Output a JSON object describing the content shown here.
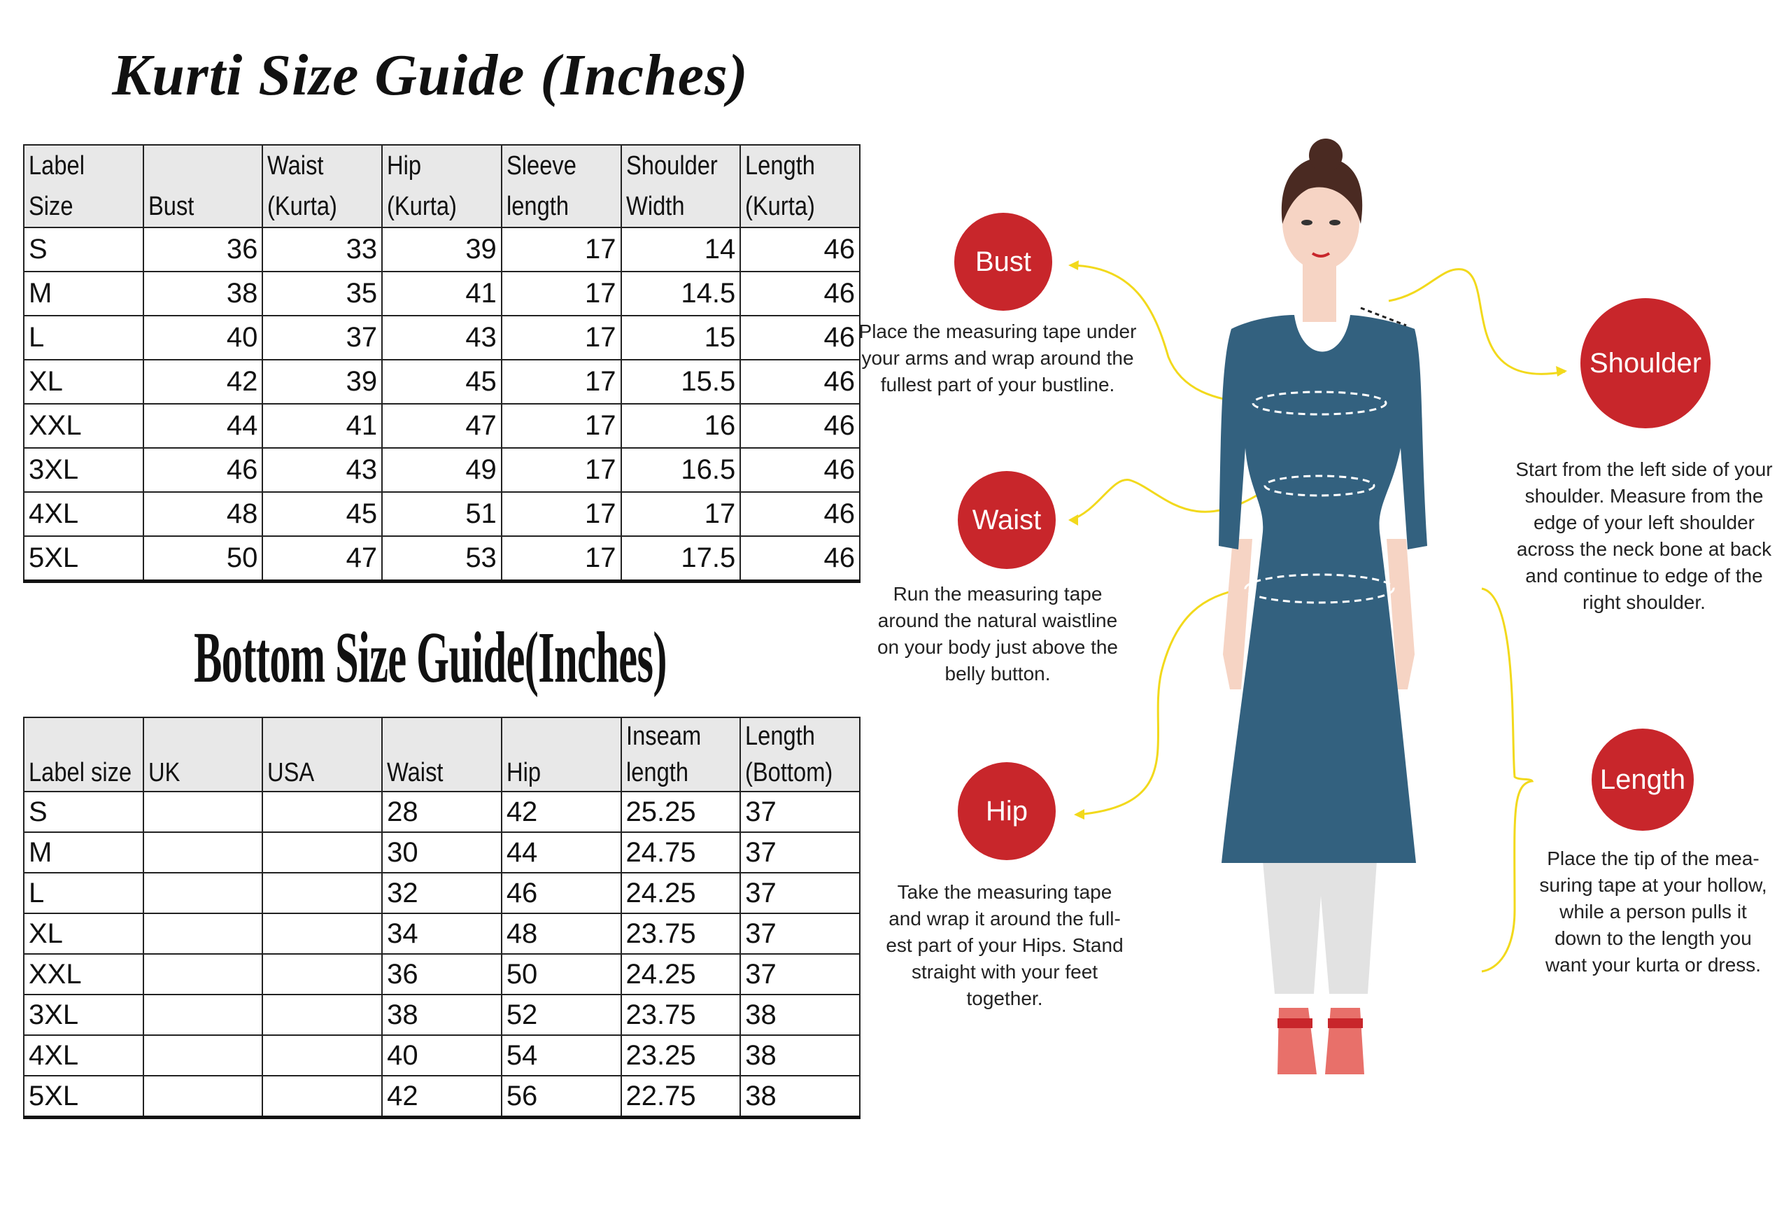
{
  "kurti": {
    "title": "Kurti Size Guide (Inches)",
    "headers": [
      [
        "Label",
        "Size"
      ],
      [
        "",
        "Bust"
      ],
      [
        "Waist",
        "(Kurta)"
      ],
      [
        "Hip",
        "(Kurta)"
      ],
      [
        "Sleeve",
        "length"
      ],
      [
        "Shoulder",
        "Width"
      ],
      [
        "Length",
        "(Kurta)"
      ]
    ],
    "rows": [
      [
        "S",
        "36",
        "33",
        "39",
        "17",
        "14",
        "46"
      ],
      [
        "M",
        "38",
        "35",
        "41",
        "17",
        "14.5",
        "46"
      ],
      [
        "L",
        "40",
        "37",
        "43",
        "17",
        "15",
        "46"
      ],
      [
        "XL",
        "42",
        "39",
        "45",
        "17",
        "15.5",
        "46"
      ],
      [
        "XXL",
        "44",
        "41",
        "47",
        "17",
        "16",
        "46"
      ],
      [
        "3XL",
        "46",
        "43",
        "49",
        "17",
        "16.5",
        "46"
      ],
      [
        "4XL",
        "48",
        "45",
        "51",
        "17",
        "17",
        "46"
      ],
      [
        "5XL",
        "50",
        "47",
        "53",
        "17",
        "17.5",
        "46"
      ]
    ]
  },
  "bottom": {
    "title": "Bottom Size Guide(Inches)",
    "headers": [
      [
        "",
        "Label size"
      ],
      [
        "",
        "UK"
      ],
      [
        "",
        "USA"
      ],
      [
        "",
        "Waist"
      ],
      [
        "",
        "Hip"
      ],
      [
        "Inseam",
        "length"
      ],
      [
        "Length",
        "(Bottom)"
      ]
    ],
    "rows": [
      [
        "S",
        "",
        "",
        "28",
        "42",
        "25.25",
        "37"
      ],
      [
        "M",
        "",
        "",
        "30",
        "44",
        "24.75",
        "37"
      ],
      [
        "L",
        "",
        "",
        "32",
        "46",
        "24.25",
        "37"
      ],
      [
        "XL",
        "",
        "",
        "34",
        "48",
        "23.75",
        "37"
      ],
      [
        "XXL",
        "",
        "",
        "36",
        "50",
        "24.25",
        "37"
      ],
      [
        "3XL",
        "",
        "",
        "38",
        "52",
        "23.75",
        "38"
      ],
      [
        "4XL",
        "",
        "",
        "40",
        "54",
        "23.25",
        "38"
      ],
      [
        "5XL",
        "",
        "",
        "42",
        "56",
        "22.75",
        "38"
      ]
    ]
  },
  "guide": {
    "bust": {
      "label": "Bust",
      "text": "Place the measuring tape under your arms and wrap around the fullest part of your bustline."
    },
    "waist": {
      "label": "Waist",
      "text": "Run the measuring tape around the natural waistline on your body just above the belly button."
    },
    "hip": {
      "label": "Hip",
      "text": "Take the measuring tape and wrap it around the full-est part of your Hips. Stand straight with your feet together."
    },
    "shoulder": {
      "label": "Shoulder",
      "text": "Start from the left side of your shoulder. Measure from the edge of your left shoulder across the neck bone at back and continue to edge of the right shoulder."
    },
    "length": {
      "label": "Length",
      "text": "Place the tip of the mea-suring tape at your hollow, while a person pulls it down to the length you want your kurta or dress."
    }
  },
  "colors": {
    "badge": "#c8262b",
    "kurta": "#33617f",
    "guide_line": "#f2d91c",
    "skin": "#f6d4c4",
    "pants": "#e2e2e2"
  }
}
